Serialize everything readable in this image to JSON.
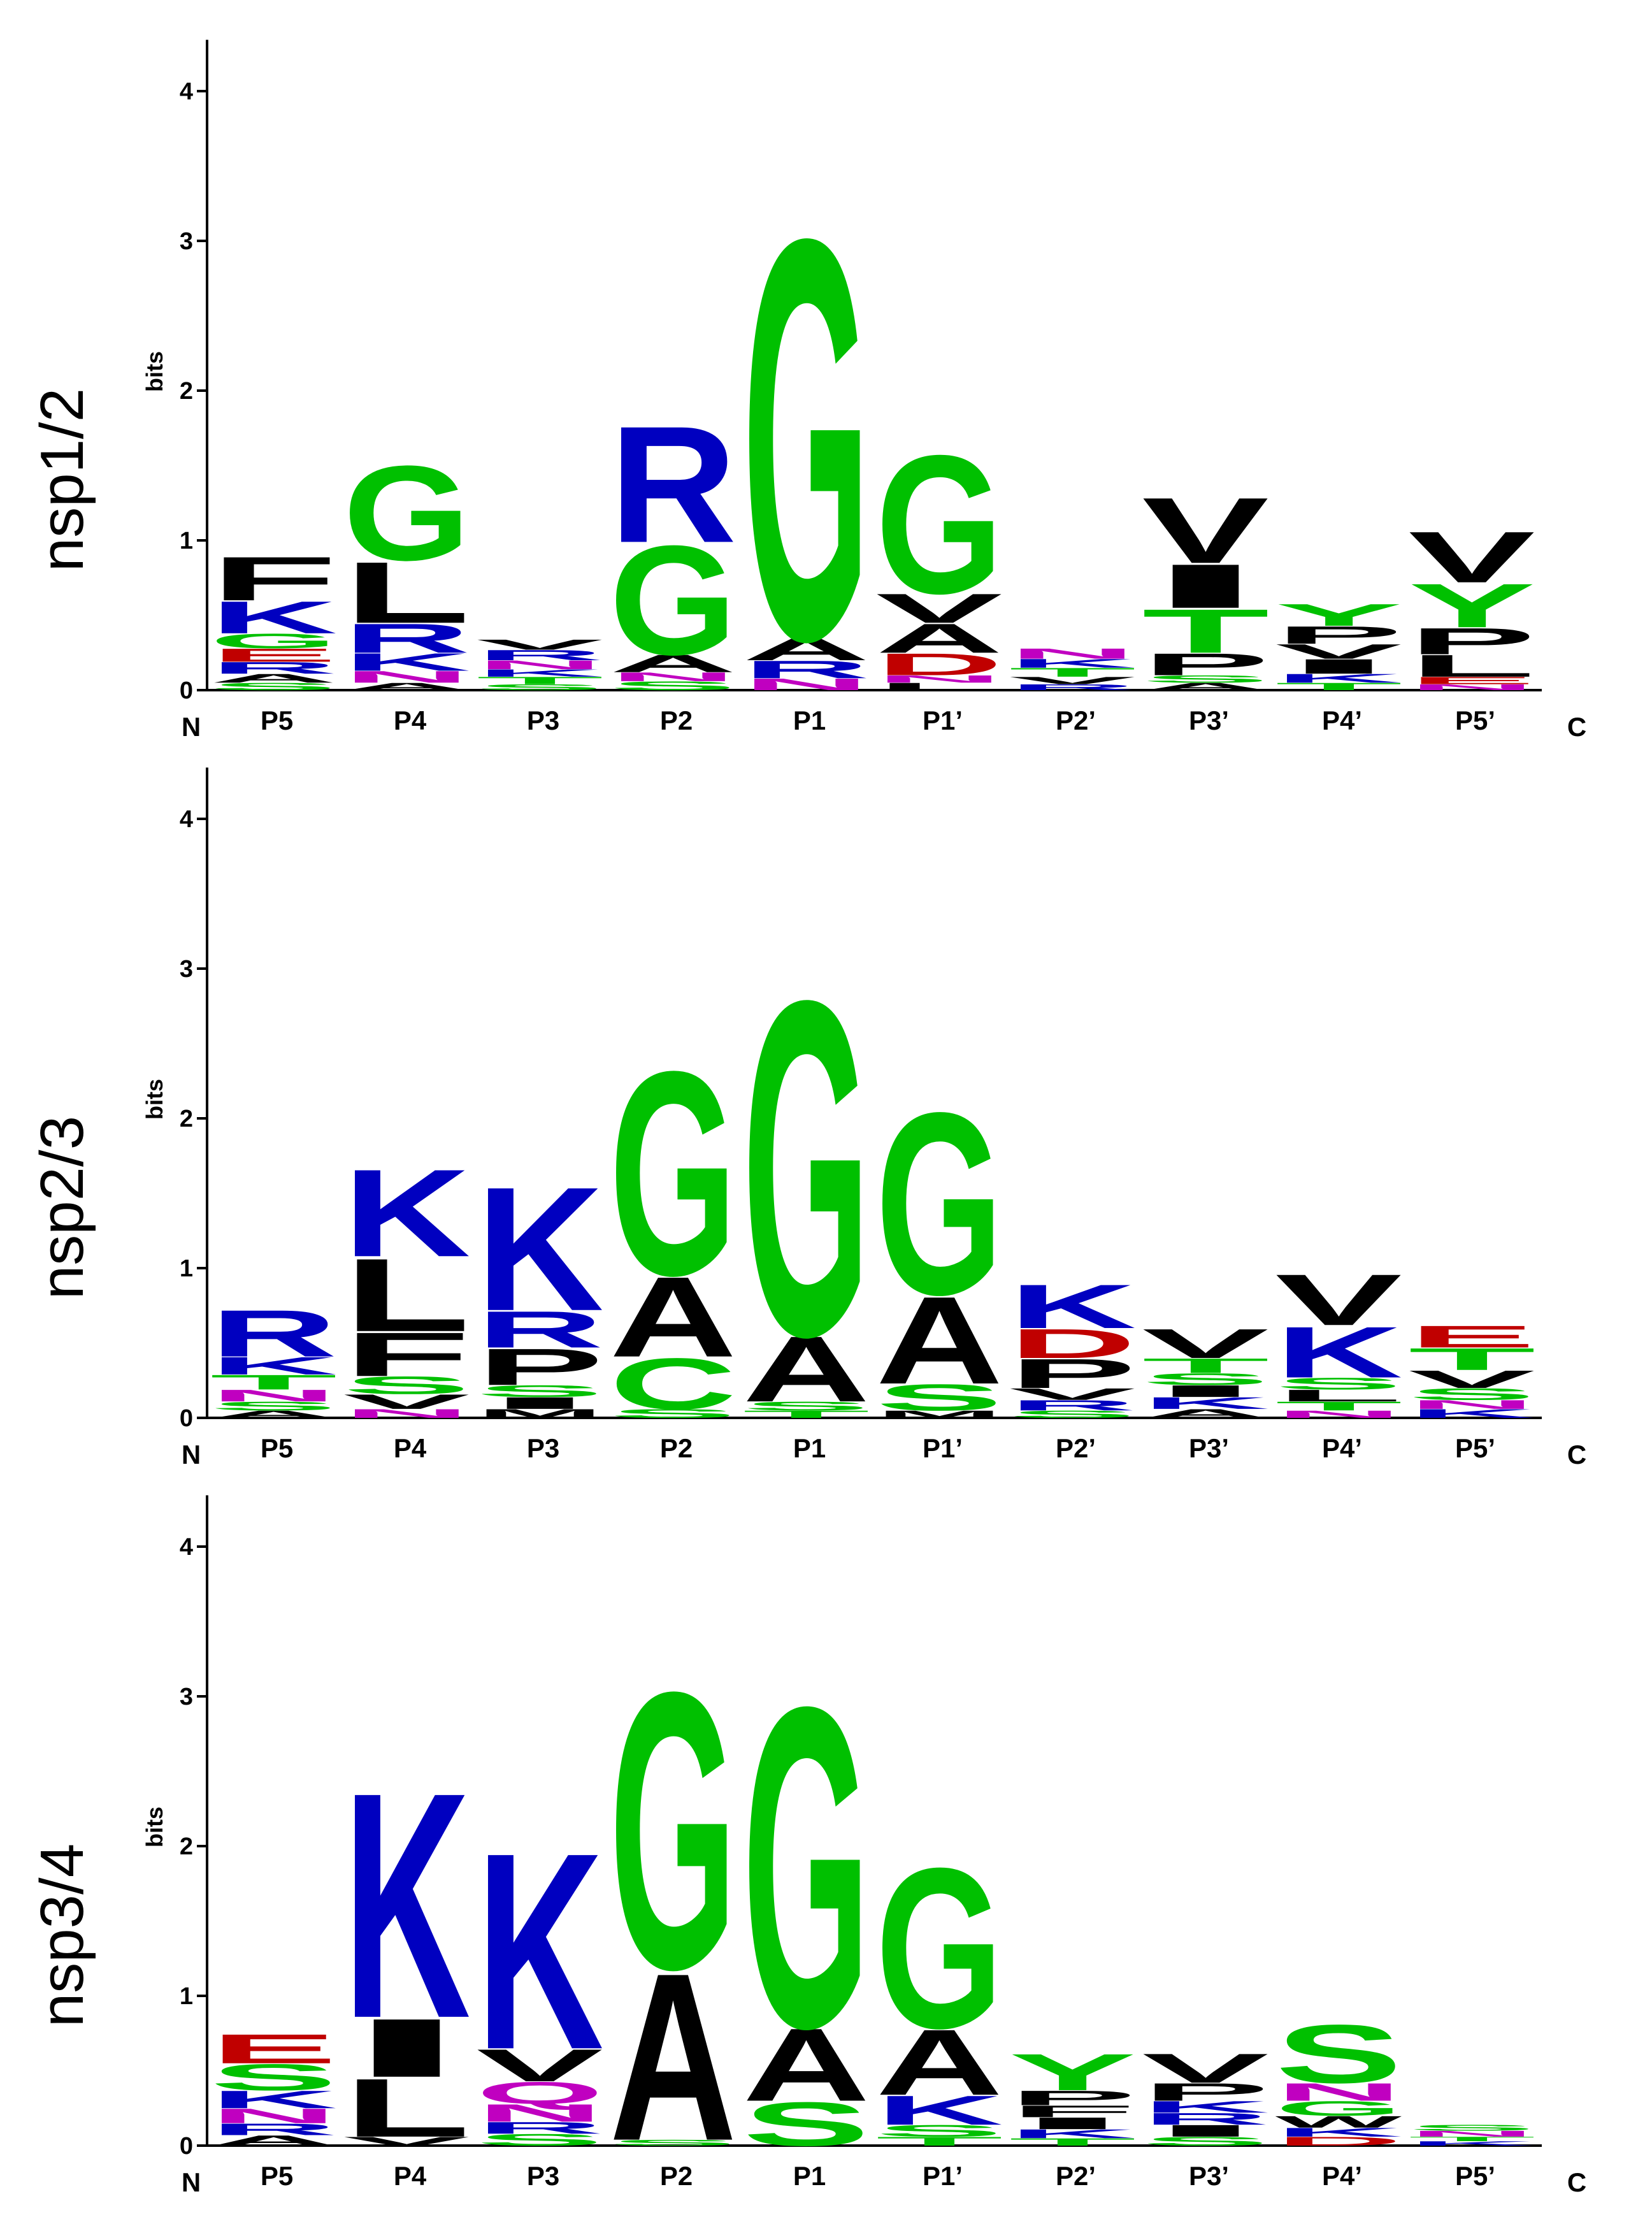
{
  "figure": {
    "type": "sequence-logo"
  },
  "chart_data": [
    {
      "type": "sequence-logo",
      "title": "nsp1/2",
      "ylabel": "bits",
      "ylim": [
        0,
        4.3
      ],
      "yticks": [
        "0",
        "1",
        "2",
        "3",
        "4"
      ],
      "n_label": "N",
      "c_label": "C",
      "positions": [
        "P5",
        "P4",
        "P3",
        "P2",
        "P1",
        "P1’",
        "P2’",
        "P3’",
        "P4’",
        "P5’"
      ],
      "columns": [
        [
          {
            "l": "F",
            "h": 0.3
          },
          {
            "l": "K",
            "h": 0.22
          },
          {
            "l": "G",
            "h": 0.1
          },
          {
            "l": "E",
            "h": 0.09
          },
          {
            "l": "R",
            "h": 0.08
          },
          {
            "l": "A",
            "h": 0.06
          },
          {
            "l": "S",
            "h": 0.05
          }
        ],
        [
          {
            "l": "G",
            "h": 0.65
          },
          {
            "l": "L",
            "h": 0.42
          },
          {
            "l": "R",
            "h": 0.2
          },
          {
            "l": "K",
            "h": 0.12
          },
          {
            "l": "N",
            "h": 0.08
          },
          {
            "l": "A",
            "h": 0.05
          }
        ],
        [
          {
            "l": "R",
            "h": 0.07
          },
          {
            "l": "V",
            "h": 0.07
          },
          {
            "l": "N",
            "h": 0.06
          },
          {
            "l": "T",
            "h": 0.05
          },
          {
            "l": "K",
            "h": 0.05
          },
          {
            "l": "S",
            "h": 0.04
          }
        ],
        [
          {
            "l": "G",
            "h": 0.75
          },
          {
            "l": "R",
            "h": 0.8
          },
          {
            "l": "A",
            "h": 0.12
          },
          {
            "l": "S",
            "h": 0.06
          },
          {
            "l": "N",
            "h": 0.06
          }
        ],
        [
          {
            "l": "G",
            "h": 2.75
          },
          {
            "l": "A",
            "h": 0.15
          },
          {
            "l": "R",
            "h": 0.12
          },
          {
            "l": "N",
            "h": 0.08
          }
        ],
        [
          {
            "l": "G",
            "h": 0.95
          },
          {
            "l": "A",
            "h": 0.2
          },
          {
            "l": "V",
            "h": 0.2
          },
          {
            "l": "D",
            "h": 0.15
          },
          {
            "l": "L",
            "h": 0.05
          },
          {
            "l": "N",
            "h": 0.05
          }
        ],
        [
          {
            "l": "N",
            "h": 0.07
          },
          {
            "l": "T",
            "h": 0.06
          },
          {
            "l": "K",
            "h": 0.06
          },
          {
            "l": "V",
            "h": 0.05
          },
          {
            "l": "R",
            "h": 0.04
          }
        ],
        [
          {
            "l": "V",
            "h": 0.45
          },
          {
            "l": "T",
            "h": 0.3
          },
          {
            "l": "I",
            "h": 0.3
          },
          {
            "l": "P",
            "h": 0.15
          },
          {
            "l": "A",
            "h": 0.05
          },
          {
            "l": "S",
            "h": 0.05
          }
        ],
        [
          {
            "l": "Y",
            "h": 0.15
          },
          {
            "l": "I",
            "h": 0.1
          },
          {
            "l": "P",
            "h": 0.12
          },
          {
            "l": "V",
            "h": 0.1
          },
          {
            "l": "K",
            "h": 0.06
          },
          {
            "l": "T",
            "h": 0.05
          }
        ],
        [
          {
            "l": "V",
            "h": 0.35
          },
          {
            "l": "Y",
            "h": 0.3
          },
          {
            "l": "P",
            "h": 0.18
          },
          {
            "l": "L",
            "h": 0.15
          },
          {
            "l": "E",
            "h": 0.05
          },
          {
            "l": "N",
            "h": 0.04
          }
        ]
      ]
    },
    {
      "type": "sequence-logo",
      "title": "nsp2/3",
      "ylabel": "bits",
      "ylim": [
        0,
        4.3
      ],
      "yticks": [
        "0",
        "1",
        "2",
        "3",
        "4"
      ],
      "n_label": "N",
      "c_label": "C",
      "positions": [
        "P5",
        "P4",
        "P3",
        "P2",
        "P1",
        "P1’",
        "P2’",
        "P3’",
        "P4’",
        "P5’"
      ],
      "columns": [
        [
          {
            "l": "R",
            "h": 0.32
          },
          {
            "l": "K",
            "h": 0.12
          },
          {
            "l": "T",
            "h": 0.1
          },
          {
            "l": "N",
            "h": 0.08
          },
          {
            "l": "S",
            "h": 0.06
          },
          {
            "l": "A",
            "h": 0.05
          }
        ],
        [
          {
            "l": "K",
            "h": 0.6
          },
          {
            "l": "L",
            "h": 0.5
          },
          {
            "l": "F",
            "h": 0.3
          },
          {
            "l": "S",
            "h": 0.12
          },
          {
            "l": "V",
            "h": 0.1
          },
          {
            "l": "N",
            "h": 0.06
          }
        ],
        [
          {
            "l": "K",
            "h": 0.85
          },
          {
            "l": "P",
            "h": 0.25
          },
          {
            "l": "R",
            "h": 0.25
          },
          {
            "l": "I",
            "h": 0.08
          },
          {
            "l": "S",
            "h": 0.08
          },
          {
            "l": "M",
            "h": 0.06
          }
        ],
        [
          {
            "l": "G",
            "h": 1.4
          },
          {
            "l": "A",
            "h": 0.55
          },
          {
            "l": "C",
            "h": 0.35
          },
          {
            "l": "S",
            "h": 0.06
          }
        ],
        [
          {
            "l": "G",
            "h": 2.3
          },
          {
            "l": "A",
            "h": 0.45
          },
          {
            "l": "S",
            "h": 0.06
          },
          {
            "l": "T",
            "h": 0.05
          }
        ],
        [
          {
            "l": "G",
            "h": 1.25
          },
          {
            "l": "A",
            "h": 0.6
          },
          {
            "l": "S",
            "h": 0.18
          },
          {
            "l": "M",
            "h": 0.05
          }
        ],
        [
          {
            "l": "P",
            "h": 0.2
          },
          {
            "l": "K",
            "h": 0.3
          },
          {
            "l": "D",
            "h": 0.2
          },
          {
            "l": "V",
            "h": 0.08
          },
          {
            "l": "R",
            "h": 0.07
          },
          {
            "l": "S",
            "h": 0.05
          }
        ],
        [
          {
            "l": "V",
            "h": 0.2
          },
          {
            "l": "T",
            "h": 0.1
          },
          {
            "l": "K",
            "h": 0.08
          },
          {
            "l": "I",
            "h": 0.08
          },
          {
            "l": "S",
            "h": 0.08
          },
          {
            "l": "A",
            "h": 0.06
          }
        ],
        [
          {
            "l": "K",
            "h": 0.35
          },
          {
            "l": "V",
            "h": 0.35
          },
          {
            "l": "L",
            "h": 0.08
          },
          {
            "l": "S",
            "h": 0.08
          },
          {
            "l": "T",
            "h": 0.06
          },
          {
            "l": "N",
            "h": 0.05
          }
        ],
        [
          {
            "l": "T",
            "h": 0.15
          },
          {
            "l": "E",
            "h": 0.15
          },
          {
            "l": "V",
            "h": 0.12
          },
          {
            "l": "S",
            "h": 0.08
          },
          {
            "l": "K",
            "h": 0.06
          },
          {
            "l": "N",
            "h": 0.06
          }
        ]
      ]
    },
    {
      "type": "sequence-logo",
      "title": "nsp3/4",
      "ylabel": "bits",
      "ylim": [
        0,
        4.3
      ],
      "yticks": [
        "0",
        "1",
        "2",
        "3",
        "4"
      ],
      "n_label": "N",
      "c_label": "C",
      "positions": [
        "P5",
        "P4",
        "P3",
        "P2",
        "P1",
        "P1’",
        "P2’",
        "P3’",
        "P4’",
        "P5’"
      ],
      "columns": [
        [
          {
            "l": "E",
            "h": 0.2
          },
          {
            "l": "S",
            "h": 0.18
          },
          {
            "l": "K",
            "h": 0.12
          },
          {
            "l": "N",
            "h": 0.1
          },
          {
            "l": "R",
            "h": 0.08
          },
          {
            "l": "A",
            "h": 0.07
          }
        ],
        [
          {
            "l": "K",
            "h": 1.55
          },
          {
            "l": "L",
            "h": 0.4
          },
          {
            "l": "I",
            "h": 0.4
          },
          {
            "l": "V",
            "h": 0.06
          }
        ],
        [
          {
            "l": "K",
            "h": 1.35
          },
          {
            "l": "V",
            "h": 0.22
          },
          {
            "l": "Q",
            "h": 0.15
          },
          {
            "l": "N",
            "h": 0.12
          },
          {
            "l": "S",
            "h": 0.08
          },
          {
            "l": "R",
            "h": 0.08
          }
        ],
        [
          {
            "l": "G",
            "h": 1.9
          },
          {
            "l": "A",
            "h": 1.15
          },
          {
            "l": "S",
            "h": 0.04
          }
        ],
        [
          {
            "l": "G",
            "h": 2.2
          },
          {
            "l": "A",
            "h": 0.5
          },
          {
            "l": "S",
            "h": 0.3
          }
        ],
        [
          {
            "l": "G",
            "h": 1.1
          },
          {
            "l": "A",
            "h": 0.45
          },
          {
            "l": "K",
            "h": 0.2
          },
          {
            "l": "S",
            "h": 0.08
          },
          {
            "l": "T",
            "h": 0.06
          }
        ],
        [
          {
            "l": "Y",
            "h": 0.25
          },
          {
            "l": "I",
            "h": 0.08
          },
          {
            "l": "P",
            "h": 0.1
          },
          {
            "l": "F",
            "h": 0.08
          },
          {
            "l": "K",
            "h": 0.06
          },
          {
            "l": "T",
            "h": 0.05
          }
        ],
        [
          {
            "l": "V",
            "h": 0.2
          },
          {
            "l": "P",
            "h": 0.12
          },
          {
            "l": "I",
            "h": 0.08
          },
          {
            "l": "R",
            "h": 0.08
          },
          {
            "l": "K",
            "h": 0.08
          },
          {
            "l": "S",
            "h": 0.06
          }
        ],
        [
          {
            "l": "S",
            "h": 0.4
          },
          {
            "l": "N",
            "h": 0.12
          },
          {
            "l": "G",
            "h": 0.1
          },
          {
            "l": "W",
            "h": 0.08
          },
          {
            "l": "D",
            "h": 0.06
          },
          {
            "l": "K",
            "h": 0.06
          }
        ],
        [
          {
            "l": "N",
            "h": 0.04
          },
          {
            "l": "S",
            "h": 0.04
          },
          {
            "l": "K",
            "h": 0.03
          },
          {
            "l": "T",
            "h": 0.03
          }
        ]
      ]
    }
  ],
  "colors": {
    "G": "#00c000",
    "S": "#00c000",
    "T": "#00c000",
    "Y": "#00c000",
    "C": "#00c000",
    "K": "#0000c0",
    "R": "#0000c0",
    "H": "#0000c0",
    "D": "#c00000",
    "E": "#c00000",
    "N": "#c000c0",
    "Q": "#c000c0",
    "A": "#000000",
    "V": "#000000",
    "L": "#000000",
    "I": "#000000",
    "P": "#000000",
    "W": "#000000",
    "F": "#000000",
    "M": "#000000"
  }
}
